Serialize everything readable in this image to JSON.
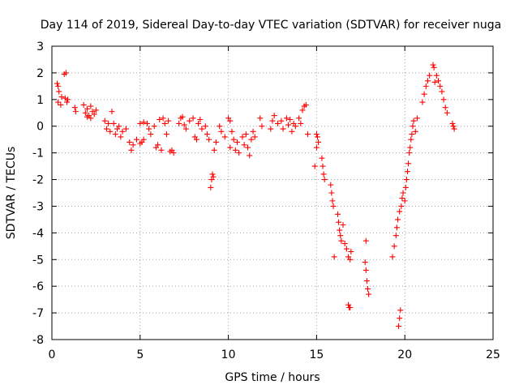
{
  "chart_data": {
    "type": "scatter",
    "title": "Day 114 of 2019, Sidereal Day-to-day VTEC variation (SDTVAR) for receiver nuga",
    "xlabel": "GPS time / hours",
    "ylabel": "SDTVAR / TECUs",
    "xlim": [
      0,
      25
    ],
    "ylim": [
      -8,
      3
    ],
    "grid": true,
    "xticks": [
      0,
      5,
      10,
      15,
      20,
      25
    ],
    "yticks": [
      -8,
      -7,
      -6,
      -5,
      -4,
      -3,
      -2,
      -1,
      0,
      1,
      2,
      3
    ],
    "marker": "+",
    "color": "#ff0000",
    "series": [
      {
        "name": "SDTVAR",
        "points": [
          [
            0.3,
            1.6
          ],
          [
            0.35,
            1.5
          ],
          [
            0.4,
            1.3
          ],
          [
            0.35,
            0.9
          ],
          [
            0.5,
            0.8
          ],
          [
            0.55,
            1.1
          ],
          [
            0.7,
            1.95
          ],
          [
            0.8,
            2.0
          ],
          [
            0.75,
            1.05
          ],
          [
            0.85,
            0.9
          ],
          [
            0.9,
            1.0
          ],
          [
            1.3,
            0.7
          ],
          [
            1.35,
            0.55
          ],
          [
            1.8,
            0.8
          ],
          [
            1.9,
            0.5
          ],
          [
            2.0,
            0.65
          ],
          [
            2.1,
            0.4
          ],
          [
            2.2,
            0.75
          ],
          [
            2.3,
            0.55
          ],
          [
            2.4,
            0.45
          ],
          [
            2.5,
            0.6
          ],
          [
            2.2,
            0.3
          ],
          [
            2.0,
            0.35
          ],
          [
            3.0,
            0.2
          ],
          [
            3.1,
            -0.1
          ],
          [
            3.2,
            0.1
          ],
          [
            3.3,
            -0.2
          ],
          [
            3.4,
            0.55
          ],
          [
            3.5,
            0.1
          ],
          [
            3.6,
            -0.3
          ],
          [
            3.7,
            -0.1
          ],
          [
            3.8,
            0.0
          ],
          [
            3.9,
            -0.4
          ],
          [
            4.0,
            -0.2
          ],
          [
            4.2,
            -0.1
          ],
          [
            4.4,
            -0.6
          ],
          [
            4.5,
            -0.9
          ],
          [
            4.6,
            -0.7
          ],
          [
            4.8,
            -0.5
          ],
          [
            5.0,
            -0.65
          ],
          [
            5.1,
            -0.6
          ],
          [
            5.2,
            -0.5
          ],
          [
            5.0,
            0.1
          ],
          [
            5.2,
            0.15
          ],
          [
            5.4,
            0.1
          ],
          [
            5.5,
            -0.1
          ],
          [
            5.6,
            -0.3
          ],
          [
            5.8,
            0.0
          ],
          [
            5.9,
            -0.8
          ],
          [
            6.0,
            -0.7
          ],
          [
            6.1,
            0.25
          ],
          [
            6.2,
            -0.9
          ],
          [
            6.3,
            0.3
          ],
          [
            6.4,
            0.1
          ],
          [
            6.5,
            -0.3
          ],
          [
            6.6,
            0.2
          ],
          [
            6.8,
            -0.9
          ],
          [
            6.9,
            -1.0
          ],
          [
            6.7,
            -0.95
          ],
          [
            7.2,
            0.1
          ],
          [
            7.3,
            0.3
          ],
          [
            7.4,
            0.35
          ],
          [
            7.5,
            0.05
          ],
          [
            7.6,
            -0.1
          ],
          [
            7.8,
            0.2
          ],
          [
            8.0,
            0.3
          ],
          [
            8.1,
            -0.4
          ],
          [
            8.2,
            -0.5
          ],
          [
            8.3,
            0.1
          ],
          [
            8.4,
            0.25
          ],
          [
            8.5,
            -0.1
          ],
          [
            8.7,
            0.0
          ],
          [
            8.8,
            -0.3
          ],
          [
            8.9,
            -0.5
          ],
          [
            9.0,
            -2.3
          ],
          [
            9.05,
            -2.0
          ],
          [
            9.1,
            -1.8
          ],
          [
            9.15,
            -1.9
          ],
          [
            9.2,
            -0.9
          ],
          [
            9.3,
            -0.6
          ],
          [
            9.5,
            0.0
          ],
          [
            9.6,
            -0.2
          ],
          [
            9.8,
            -0.4
          ],
          [
            10.0,
            0.3
          ],
          [
            10.1,
            0.2
          ],
          [
            10.1,
            -0.8
          ],
          [
            10.2,
            -0.2
          ],
          [
            10.3,
            -0.5
          ],
          [
            10.4,
            -0.9
          ],
          [
            10.5,
            -0.6
          ],
          [
            10.6,
            -1.0
          ],
          [
            10.8,
            -0.4
          ],
          [
            10.9,
            -0.7
          ],
          [
            11.0,
            -0.3
          ],
          [
            11.1,
            -0.8
          ],
          [
            11.2,
            -1.1
          ],
          [
            11.3,
            -0.5
          ],
          [
            11.4,
            -0.2
          ],
          [
            11.5,
            -0.4
          ],
          [
            11.8,
            0.3
          ],
          [
            11.9,
            0.0
          ],
          [
            12.4,
            -0.1
          ],
          [
            12.5,
            0.2
          ],
          [
            12.6,
            0.4
          ],
          [
            12.8,
            0.1
          ],
          [
            13.0,
            0.2
          ],
          [
            13.1,
            -0.1
          ],
          [
            13.3,
            0.3
          ],
          [
            13.4,
            0.05
          ],
          [
            13.5,
            0.25
          ],
          [
            13.6,
            -0.2
          ],
          [
            13.7,
            0.1
          ],
          [
            13.8,
            0.0
          ],
          [
            14.0,
            0.3
          ],
          [
            14.1,
            0.1
          ],
          [
            14.2,
            0.6
          ],
          [
            14.3,
            0.75
          ],
          [
            14.4,
            0.8
          ],
          [
            14.5,
            -0.3
          ],
          [
            15.0,
            -0.3
          ],
          [
            15.05,
            -0.4
          ],
          [
            15.1,
            -0.6
          ],
          [
            15.0,
            -0.8
          ],
          [
            14.9,
            -1.5
          ],
          [
            15.3,
            -1.2
          ],
          [
            15.35,
            -1.5
          ],
          [
            15.4,
            -1.8
          ],
          [
            15.45,
            -2.0
          ],
          [
            15.8,
            -2.2
          ],
          [
            15.85,
            -2.5
          ],
          [
            15.9,
            -2.8
          ],
          [
            15.95,
            -3.0
          ],
          [
            16.0,
            -4.9
          ],
          [
            16.2,
            -3.3
          ],
          [
            16.25,
            -3.6
          ],
          [
            16.3,
            -3.9
          ],
          [
            16.35,
            -4.1
          ],
          [
            16.4,
            -4.3
          ],
          [
            16.5,
            -3.7
          ],
          [
            16.6,
            -4.4
          ],
          [
            16.7,
            -4.6
          ],
          [
            16.8,
            -4.9
          ],
          [
            16.9,
            -5.0
          ],
          [
            16.95,
            -4.7
          ],
          [
            16.8,
            -6.7
          ],
          [
            16.85,
            -6.8
          ],
          [
            16.9,
            -6.8
          ],
          [
            17.8,
            -4.3
          ],
          [
            17.75,
            -5.1
          ],
          [
            17.8,
            -5.4
          ],
          [
            17.85,
            -5.8
          ],
          [
            17.9,
            -6.1
          ],
          [
            17.95,
            -6.3
          ],
          [
            19.3,
            -4.9
          ],
          [
            19.4,
            -4.5
          ],
          [
            19.5,
            -4.1
          ],
          [
            19.55,
            -3.8
          ],
          [
            19.6,
            -3.5
          ],
          [
            19.7,
            -3.2
          ],
          [
            19.8,
            -3.0
          ],
          [
            19.85,
            -2.7
          ],
          [
            19.9,
            -2.5
          ],
          [
            19.65,
            -7.5
          ],
          [
            19.7,
            -7.2
          ],
          [
            19.75,
            -6.9
          ],
          [
            20.0,
            -2.8
          ],
          [
            20.05,
            -2.3
          ],
          [
            20.1,
            -2.0
          ],
          [
            20.15,
            -1.7
          ],
          [
            20.2,
            -1.4
          ],
          [
            20.25,
            -1.0
          ],
          [
            20.3,
            -0.8
          ],
          [
            20.35,
            -0.5
          ],
          [
            20.4,
            -0.3
          ],
          [
            20.45,
            0.0
          ],
          [
            20.5,
            0.2
          ],
          [
            20.6,
            -0.2
          ],
          [
            20.7,
            0.3
          ],
          [
            21.0,
            0.9
          ],
          [
            21.1,
            1.2
          ],
          [
            21.2,
            1.5
          ],
          [
            21.3,
            1.7
          ],
          [
            21.4,
            1.9
          ],
          [
            21.6,
            2.3
          ],
          [
            21.65,
            2.2
          ],
          [
            21.7,
            1.65
          ],
          [
            21.8,
            1.9
          ],
          [
            21.9,
            1.7
          ],
          [
            22.0,
            1.5
          ],
          [
            22.1,
            1.3
          ],
          [
            22.2,
            1.0
          ],
          [
            22.3,
            0.7
          ],
          [
            22.4,
            0.5
          ],
          [
            22.7,
            0.1
          ],
          [
            22.75,
            0.0
          ],
          [
            22.8,
            -0.1
          ]
        ]
      }
    ]
  }
}
